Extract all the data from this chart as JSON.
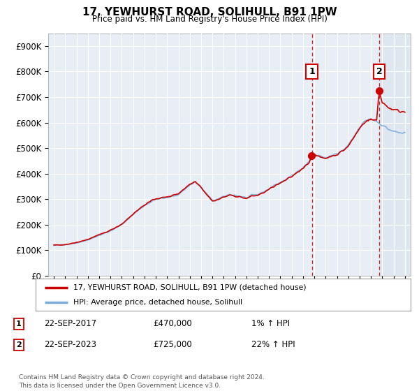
{
  "title": "17, YEWHURST ROAD, SOLIHULL, B91 1PW",
  "subtitle": "Price paid vs. HM Land Registry's House Price Index (HPI)",
  "ytick_values": [
    0,
    100000,
    200000,
    300000,
    400000,
    500000,
    600000,
    700000,
    800000,
    900000
  ],
  "ylim": [
    0,
    950000
  ],
  "xlim_start": 1994.5,
  "xlim_end": 2026.5,
  "price_paid_dates": [
    2017.72,
    2023.72
  ],
  "price_paid_values": [
    470000,
    725000
  ],
  "vline1_x": 2017.78,
  "vline2_x": 2023.72,
  "marker1_label": "1",
  "marker2_label": "2",
  "legend_line1": "17, YEWHURST ROAD, SOLIHULL, B91 1PW (detached house)",
  "legend_line2": "HPI: Average price, detached house, Solihull",
  "annotation1_date": "22-SEP-2017",
  "annotation1_price": "£470,000",
  "annotation1_hpi": "1% ↑ HPI",
  "annotation2_date": "22-SEP-2023",
  "annotation2_price": "£725,000",
  "annotation2_hpi": "22% ↑ HPI",
  "footer": "Contains HM Land Registry data © Crown copyright and database right 2024.\nThis data is licensed under the Open Government Licence v3.0.",
  "line_color_red": "#cc0000",
  "line_color_blue": "#7aabdb",
  "vline_color": "#cc0000",
  "background_plot": "#e8eef5",
  "background_fig": "#ffffff",
  "grid_color": "#ffffff",
  "shade_color": "#ccd9e8"
}
